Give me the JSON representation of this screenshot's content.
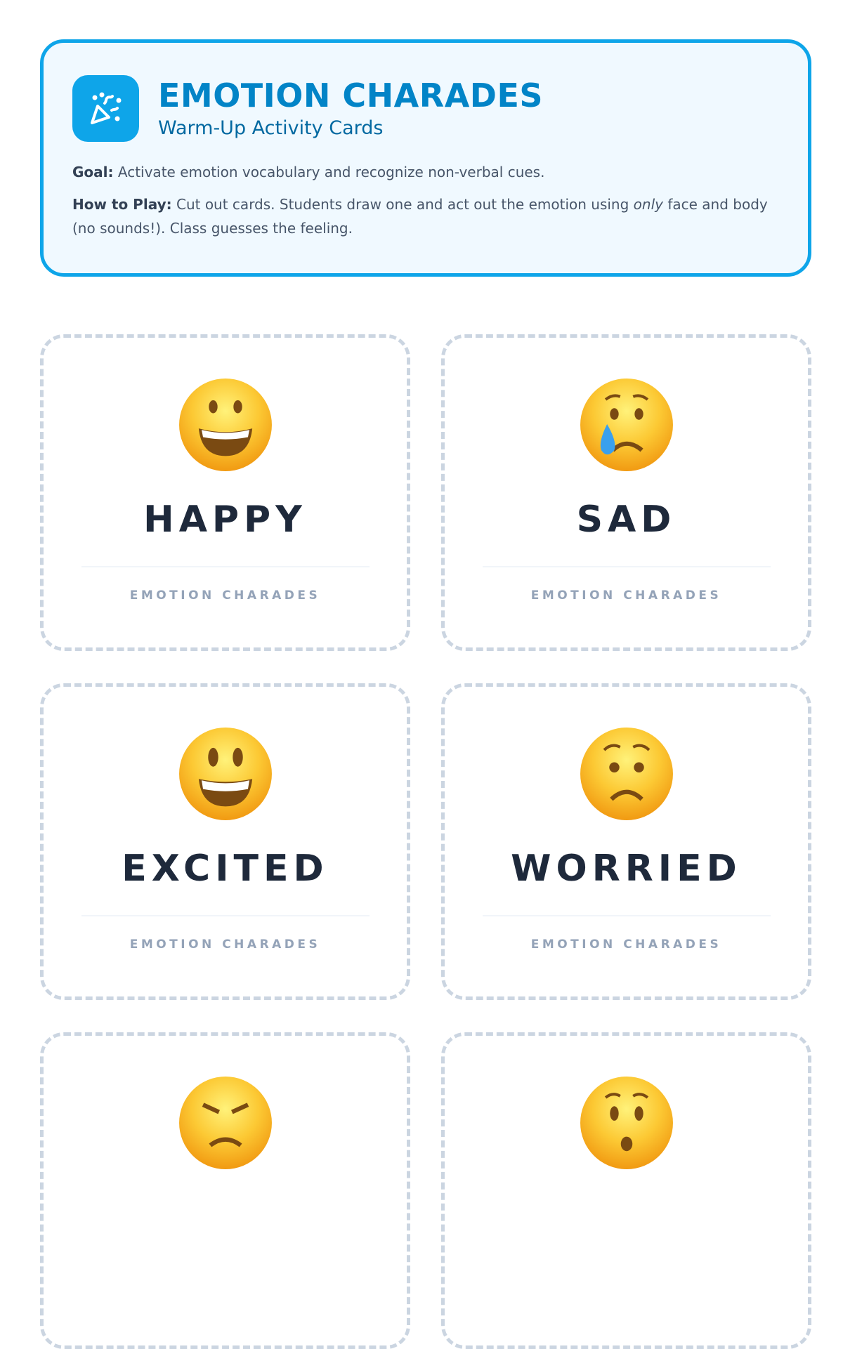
{
  "header": {
    "icon": "party-popper-icon",
    "title": "EMOTION CHARADES",
    "subtitle": "Warm-Up Activity Cards",
    "goal_label": "Goal:",
    "goal_text": "Activate emotion vocabulary and recognize non-verbal cues.",
    "howto_label": "How to Play:",
    "howto_text_1": "Cut out cards. Students draw one and act out the emotion using ",
    "howto_emphasis": "only",
    "howto_text_2": " face and body (no sounds!). Class guesses the feeling."
  },
  "colors": {
    "accent": "#0ea5e9",
    "title": "#0284c7",
    "card_border": "#cbd5e1",
    "footer": "#94a3b8"
  },
  "cards": [
    {
      "emoji": "😀",
      "face": "grinning-face-icon",
      "word": "HAPPY",
      "footer": "EMOTION CHARADES"
    },
    {
      "emoji": "😢",
      "face": "crying-face-icon",
      "word": "SAD",
      "footer": "EMOTION CHARADES"
    },
    {
      "emoji": "😃",
      "face": "grinning-big-eyes-face-icon",
      "word": "EXCITED",
      "footer": "EMOTION CHARADES"
    },
    {
      "emoji": "😟",
      "face": "worried-face-icon",
      "word": "WORRIED",
      "footer": "EMOTION CHARADES"
    },
    {
      "emoji": "😠",
      "face": "angry-face-icon",
      "word": "",
      "footer": ""
    },
    {
      "emoji": "😯",
      "face": "hushed-face-icon",
      "word": "",
      "footer": ""
    }
  ]
}
